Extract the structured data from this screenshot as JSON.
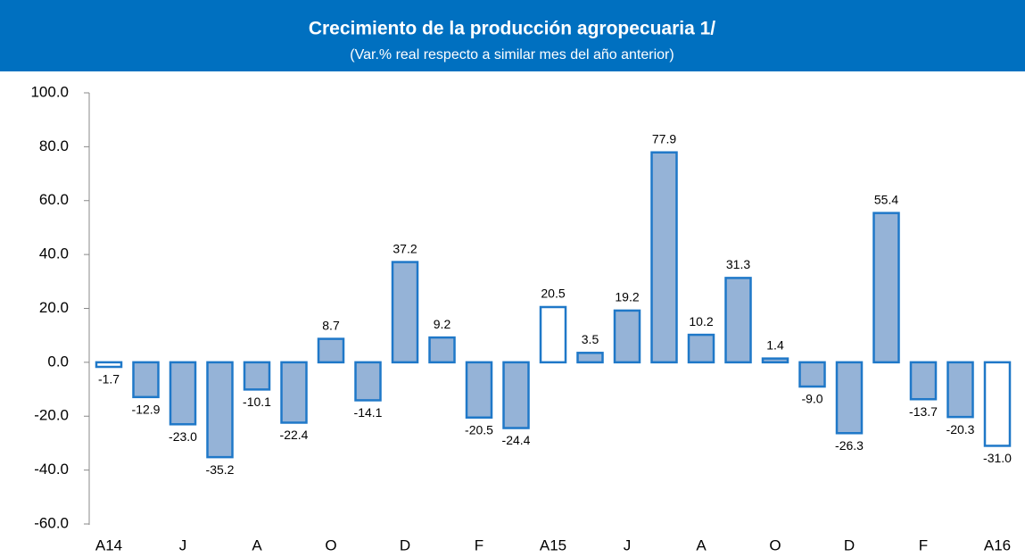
{
  "chart_data": {
    "type": "bar",
    "title": "Crecimiento de la producción agropecuaria 1/",
    "subtitle": "(Var.% real respecto a similar mes del año anterior)",
    "categories": [
      "A14",
      null,
      "J",
      null,
      "A",
      null,
      "O",
      null,
      "D",
      null,
      "F",
      null,
      "A15",
      null,
      "J",
      null,
      "A",
      null,
      "O",
      null,
      "D",
      null,
      "F",
      null,
      "A16"
    ],
    "values": [
      -1.7,
      -12.9,
      -23.0,
      -35.2,
      -10.1,
      -22.4,
      8.7,
      -14.1,
      37.2,
      9.2,
      -20.5,
      -24.4,
      20.5,
      3.5,
      19.2,
      77.9,
      10.2,
      31.3,
      1.4,
      -9.0,
      -26.3,
      55.4,
      -13.7,
      -20.3,
      -31.0
    ],
    "value_labels": [
      "-1.7",
      "-12.9",
      "-23.0",
      "-35.2",
      "-10.1",
      "-22.4",
      "8.7",
      "-14.1",
      "37.2",
      "9.2",
      "-20.5",
      "-24.4",
      "20.5",
      "3.5",
      "19.2",
      "77.9",
      "10.2",
      "31.3",
      "1.4",
      "-9.0",
      "-26.3",
      "55.4",
      "-13.7",
      "-20.3",
      "-31.0"
    ],
    "colors": [
      "#ffffff",
      "#95b3d7",
      "#95b3d7",
      "#95b3d7",
      "#95b3d7",
      "#95b3d7",
      "#95b3d7",
      "#95b3d7",
      "#95b3d7",
      "#95b3d7",
      "#95b3d7",
      "#95b3d7",
      "#ffffff",
      "#95b3d7",
      "#95b3d7",
      "#95b3d7",
      "#95b3d7",
      "#95b3d7",
      "#95b3d7",
      "#95b3d7",
      "#95b3d7",
      "#95b3d7",
      "#95b3d7",
      "#95b3d7",
      "#ffffff"
    ],
    "edge_color": "#1f78c8",
    "header_color": "#0070c0",
    "ylim": [
      -60,
      100
    ],
    "yticks": [
      {
        "value": -60,
        "label": "-60.0"
      },
      {
        "value": -40,
        "label": "-40.0"
      },
      {
        "value": -20,
        "label": "-20.0"
      },
      {
        "value": 0,
        "label": "0.0"
      },
      {
        "value": 20,
        "label": "20.0"
      },
      {
        "value": 40,
        "label": "40.0"
      },
      {
        "value": 60,
        "label": "60.0"
      },
      {
        "value": 80,
        "label": "80.0"
      },
      {
        "value": 100,
        "label": "100.0"
      }
    ]
  }
}
